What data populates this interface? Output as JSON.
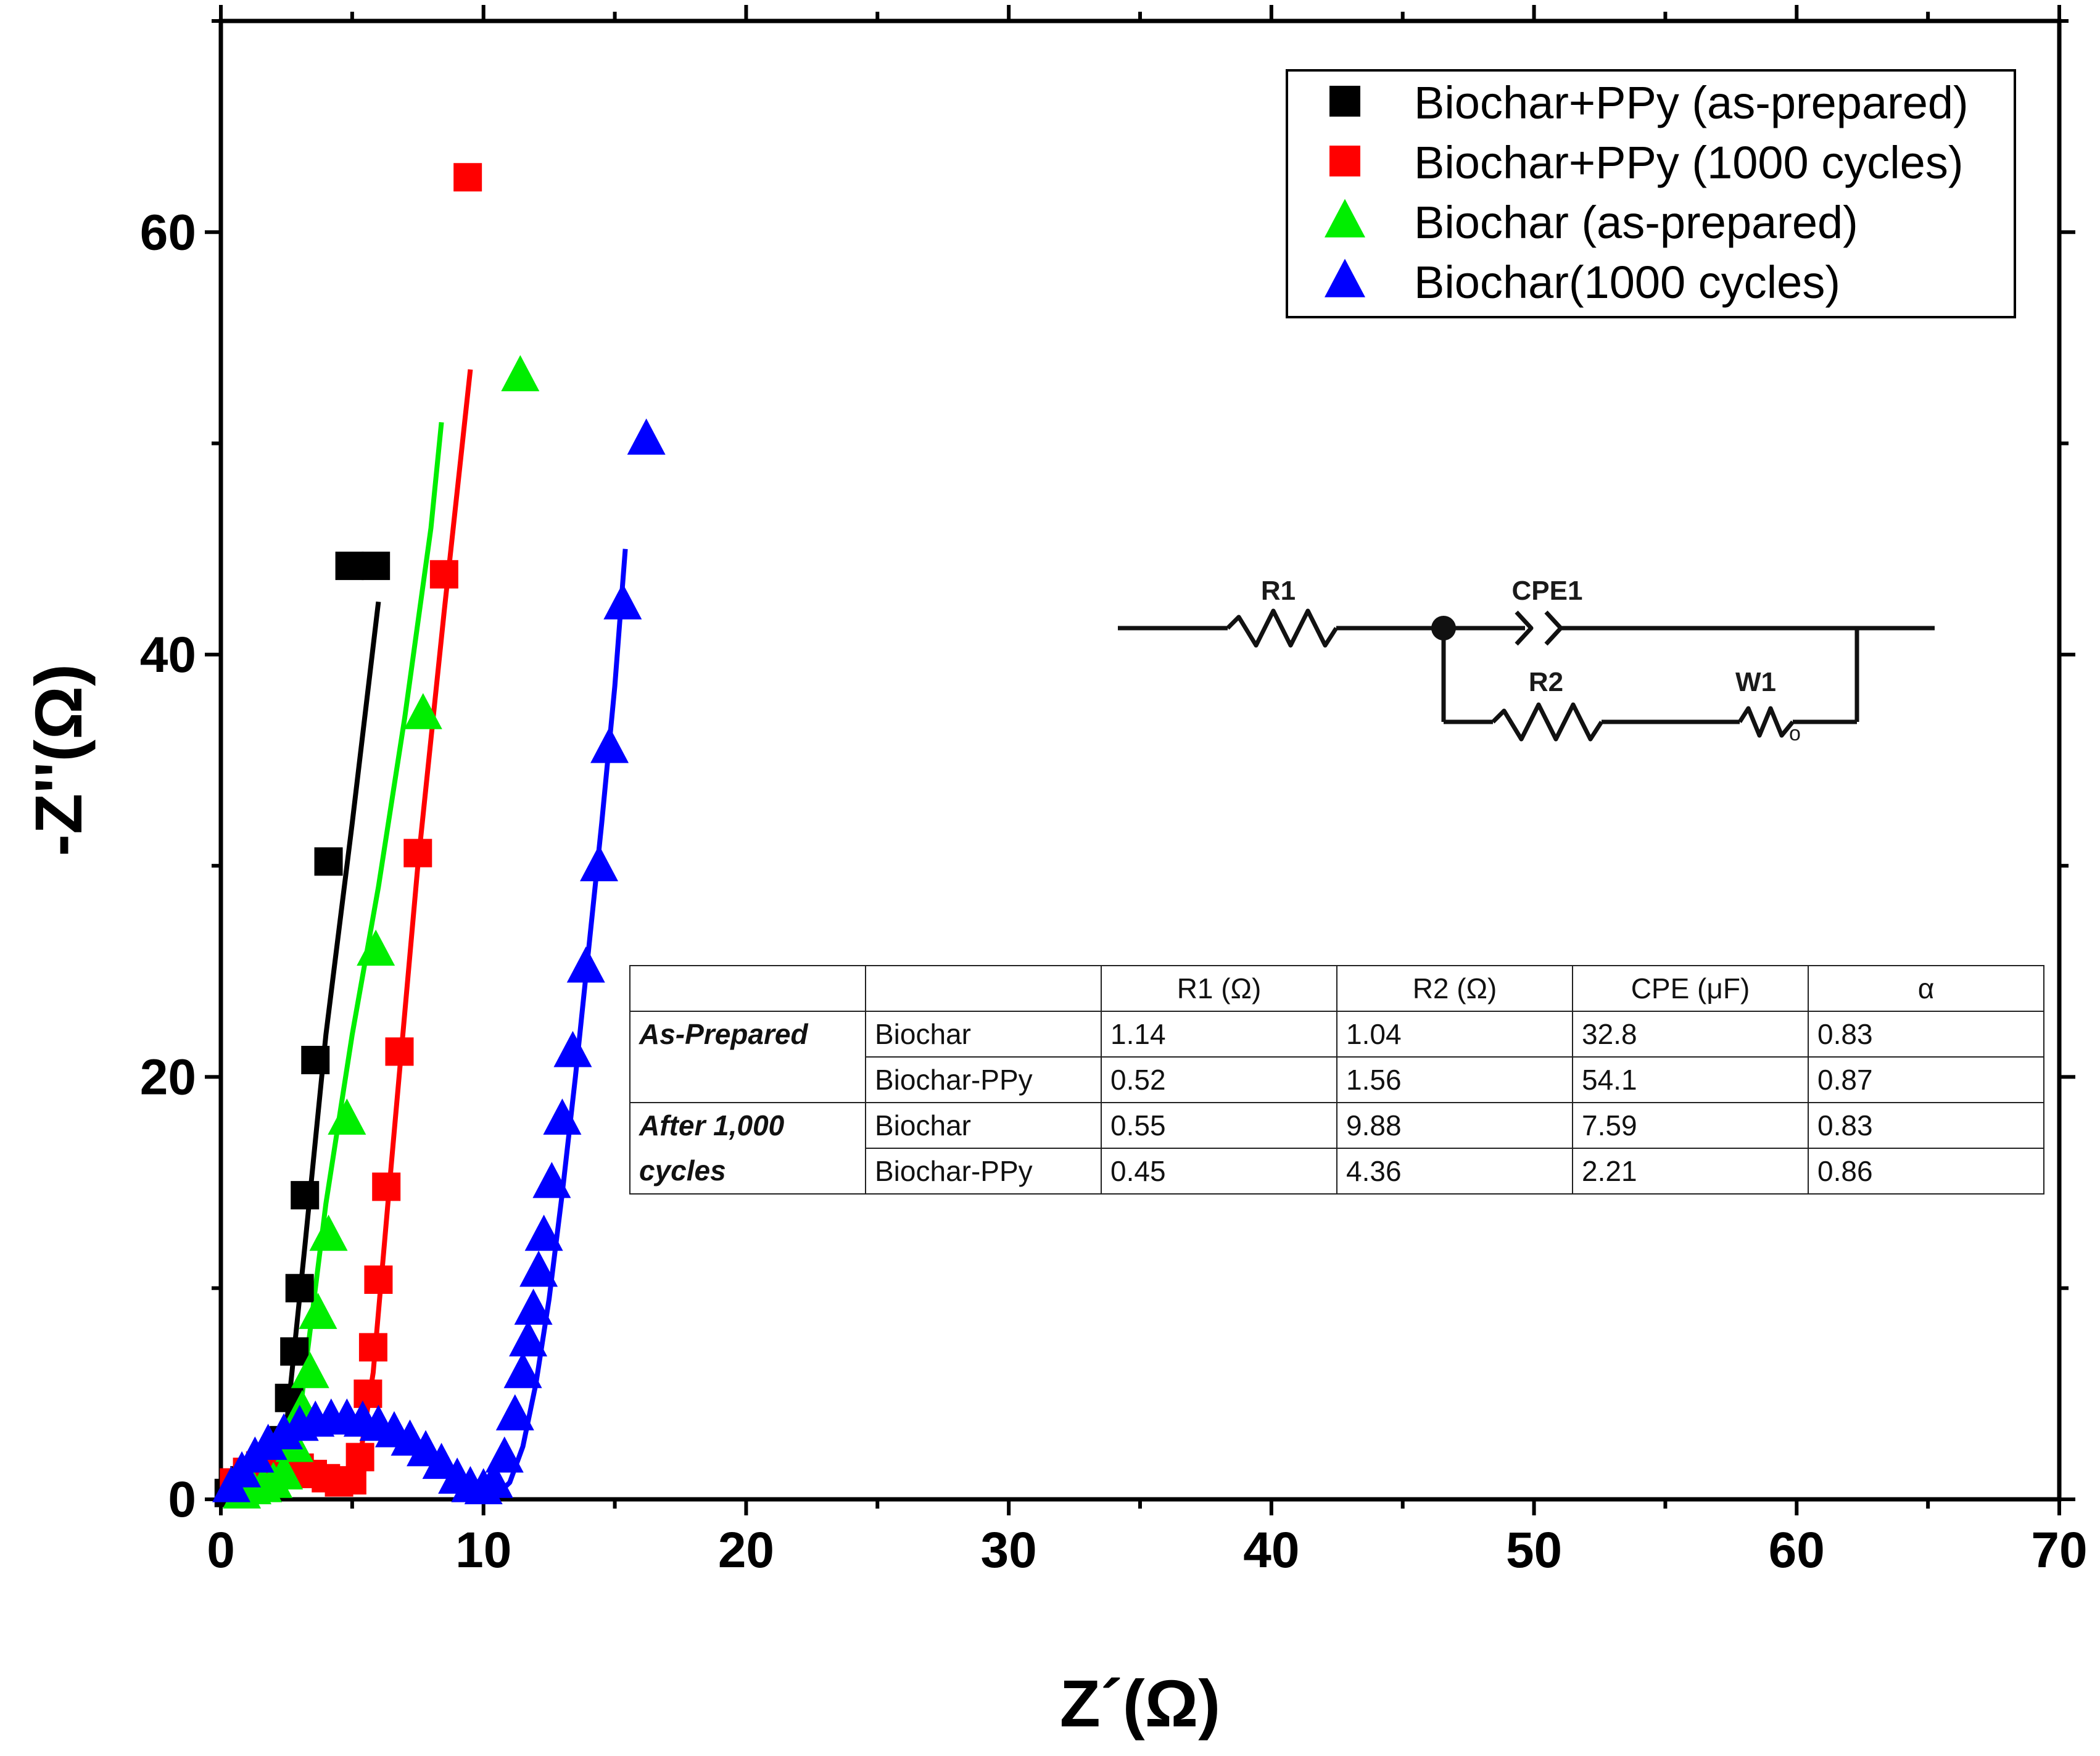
{
  "chart_data": {
    "type": "scatter",
    "xlabel": "Z´(Ω)",
    "ylabel": "-Z''(Ω)",
    "xlim": [
      0,
      70
    ],
    "ylim": [
      0,
      70
    ],
    "xticks": [
      0,
      10,
      20,
      30,
      40,
      50,
      60,
      70
    ],
    "xtick_labels": [
      "0",
      "10",
      "20",
      "30",
      "40",
      "50",
      "60",
      "70"
    ],
    "yticks": [
      0,
      20,
      40,
      60
    ],
    "ytick_labels": [
      "0",
      "20",
      "40",
      "60"
    ],
    "legend_position": "top-right",
    "series": [
      {
        "name": "Biochar+PPy (as-prepared)",
        "color": "#000000",
        "marker": "square",
        "x": [
          0.3,
          0.6,
          0.9,
          1.2,
          1.5,
          1.8,
          2.1,
          2.4,
          2.6,
          2.8,
          3.0,
          3.2,
          3.6,
          4.1,
          4.9,
          5.9
        ],
        "y": [
          0.3,
          0.6,
          0.9,
          1.0,
          1.1,
          1.3,
          1.8,
          2.8,
          4.8,
          7.0,
          10.0,
          14.4,
          20.8,
          30.2,
          44.2,
          44.2
        ],
        "fit_x": [
          0.2,
          1.0,
          2.0,
          2.5,
          3.2,
          4.0,
          5.0,
          6.0
        ],
        "fit_y": [
          0.1,
          0.8,
          1.5,
          3.5,
          12.0,
          22.0,
          32.0,
          42.5
        ]
      },
      {
        "name": "Biochar+PPy (1000 cycles)",
        "color": "#ff0000",
        "marker": "square",
        "x": [
          0.5,
          1.0,
          1.5,
          2.0,
          2.5,
          3.0,
          3.5,
          4.0,
          4.5,
          5.0,
          5.3,
          5.6,
          5.8,
          6.0,
          6.3,
          6.8,
          7.5,
          8.5,
          9.4
        ],
        "y": [
          0.8,
          1.3,
          1.6,
          1.8,
          1.8,
          1.5,
          1.2,
          1.0,
          0.8,
          0.9,
          2.0,
          5.0,
          7.2,
          10.4,
          14.8,
          21.2,
          30.6,
          43.8,
          62.6
        ],
        "fit_x": [
          0.3,
          1.5,
          3.0,
          4.5,
          5.3,
          5.8,
          6.5,
          7.5,
          8.5,
          9.5
        ],
        "fit_y": [
          0.3,
          1.5,
          1.6,
          0.8,
          2.0,
          6.0,
          16.0,
          30.0,
          42.0,
          53.5
        ]
      },
      {
        "name": "Biochar (as-prepared)",
        "color": "#00ee00",
        "marker": "triangle",
        "x": [
          0.8,
          1.2,
          1.6,
          2.0,
          2.4,
          2.8,
          3.1,
          3.4,
          3.7,
          4.1,
          4.8,
          5.9,
          7.7,
          11.4
        ],
        "y": [
          0.3,
          0.5,
          0.6,
          0.8,
          1.2,
          2.5,
          4.2,
          6.0,
          8.8,
          12.5,
          18.0,
          26.0,
          37.2,
          53.2
        ],
        "fit_x": [
          0.5,
          1.5,
          2.5,
          3.0,
          4.0,
          5.0,
          6.0,
          7.0,
          8.0,
          8.4
        ],
        "fit_y": [
          0.3,
          0.6,
          1.0,
          4.0,
          14.0,
          22.0,
          29.0,
          37.0,
          46.0,
          51.0
        ]
      },
      {
        "name": "Biochar(1000 cycles)",
        "color": "#0000ff",
        "marker": "triangle",
        "x": [
          0.4,
          0.8,
          1.3,
          1.8,
          2.4,
          3.0,
          3.6,
          4.2,
          4.8,
          5.4,
          6.0,
          6.6,
          7.2,
          7.8,
          8.4,
          9.0,
          9.5,
          10.0,
          10.4,
          10.8,
          11.2,
          11.5,
          11.7,
          11.9,
          12.1,
          12.3,
          12.6,
          13.0,
          13.4,
          13.9,
          14.4,
          14.8,
          15.3,
          16.2
        ],
        "y": [
          0.6,
          1.3,
          2.0,
          2.6,
          3.1,
          3.5,
          3.7,
          3.8,
          3.8,
          3.7,
          3.5,
          3.2,
          2.8,
          2.3,
          1.7,
          1.0,
          0.6,
          0.5,
          0.8,
          2.0,
          4.0,
          6.0,
          7.5,
          9.0,
          10.8,
          12.5,
          15.0,
          18.0,
          21.2,
          25.2,
          30.0,
          35.6,
          42.4,
          50.2
        ],
        "fit_x": [
          0.2,
          1.0,
          2.0,
          3.0,
          4.0,
          5.0,
          6.0,
          7.0,
          8.0,
          9.0,
          10.0,
          10.5,
          11.0,
          11.5,
          12.0,
          12.5,
          13.0,
          13.5,
          14.0,
          14.5,
          15.0,
          15.4
        ],
        "fit_y": [
          0.2,
          1.6,
          2.8,
          3.5,
          3.8,
          3.8,
          3.5,
          2.9,
          2.0,
          1.0,
          0.3,
          0.2,
          0.8,
          2.5,
          5.5,
          9.5,
          14.5,
          20.0,
          26.0,
          32.0,
          38.5,
          45.0
        ]
      }
    ]
  },
  "circuit": {
    "labels": [
      "R1",
      "CPE1",
      "R2",
      "W1"
    ],
    "w_subscript": "o"
  },
  "table": {
    "headers": [
      "",
      "",
      "R1 (Ω)",
      "R2 (Ω)",
      "CPE (μF)",
      "α"
    ],
    "groups": [
      "As-Prepared",
      "After 1,000",
      "cycles"
    ],
    "rows": [
      {
        "material": "Biochar",
        "r1": "1.14",
        "r2": "1.04",
        "cpe": "32.8",
        "alpha": "0.83"
      },
      {
        "material": "Biochar-PPy",
        "r1": "0.52",
        "r2": "1.56",
        "cpe": "54.1",
        "alpha": "0.87"
      },
      {
        "material": "Biochar",
        "r1": "0.55",
        "r2": "9.88",
        "cpe": "7.59",
        "alpha": "0.83"
      },
      {
        "material": "Biochar-PPy",
        "r1": "0.45",
        "r2": "4.36",
        "cpe": "2.21",
        "alpha": "0.86"
      }
    ]
  }
}
